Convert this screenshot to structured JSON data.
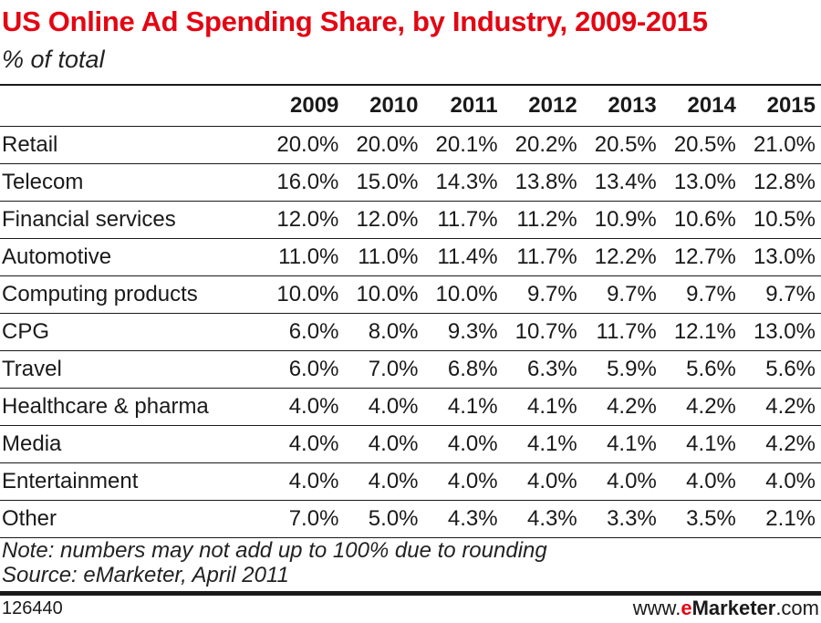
{
  "chart_data": {
    "type": "table",
    "title": "US Online Ad Spending Share, by Industry, 2009-2015",
    "subtitle": "% of total",
    "columns": [
      "2009",
      "2010",
      "2011",
      "2012",
      "2013",
      "2014",
      "2015"
    ],
    "rows": [
      {
        "label": "Retail",
        "values": [
          "20.0%",
          "20.0%",
          "20.1%",
          "20.2%",
          "20.5%",
          "20.5%",
          "21.0%"
        ]
      },
      {
        "label": "Telecom",
        "values": [
          "16.0%",
          "15.0%",
          "14.3%",
          "13.8%",
          "13.4%",
          "13.0%",
          "12.8%"
        ]
      },
      {
        "label": "Financial services",
        "values": [
          "12.0%",
          "12.0%",
          "11.7%",
          "11.2%",
          "10.9%",
          "10.6%",
          "10.5%"
        ]
      },
      {
        "label": "Automotive",
        "values": [
          "11.0%",
          "11.0%",
          "11.4%",
          "11.7%",
          "12.2%",
          "12.7%",
          "13.0%"
        ]
      },
      {
        "label": "Computing products",
        "values": [
          "10.0%",
          "10.0%",
          "10.0%",
          "9.7%",
          "9.7%",
          "9.7%",
          "9.7%"
        ]
      },
      {
        "label": "CPG",
        "values": [
          "6.0%",
          "8.0%",
          "9.3%",
          "10.7%",
          "11.7%",
          "12.1%",
          "13.0%"
        ]
      },
      {
        "label": "Travel",
        "values": [
          "6.0%",
          "7.0%",
          "6.8%",
          "6.3%",
          "5.9%",
          "5.6%",
          "5.6%"
        ]
      },
      {
        "label": "Healthcare & pharma",
        "values": [
          "4.0%",
          "4.0%",
          "4.1%",
          "4.1%",
          "4.2%",
          "4.2%",
          "4.2%"
        ]
      },
      {
        "label": "Media",
        "values": [
          "4.0%",
          "4.0%",
          "4.0%",
          "4.1%",
          "4.1%",
          "4.1%",
          "4.2%"
        ]
      },
      {
        "label": "Entertainment",
        "values": [
          "4.0%",
          "4.0%",
          "4.0%",
          "4.0%",
          "4.0%",
          "4.0%",
          "4.0%"
        ]
      },
      {
        "label": "Other",
        "values": [
          "7.0%",
          "5.0%",
          "4.3%",
          "4.3%",
          "3.3%",
          "3.5%",
          "2.1%"
        ]
      }
    ]
  },
  "notes": {
    "note": "Note: numbers may not add up to 100% due to rounding",
    "source": "Source: eMarketer, April 2011"
  },
  "footer": {
    "chart_id": "126440",
    "brand_prefix": "www.",
    "brand_e": "e",
    "brand_name": "Marketer",
    "brand_suffix": ".com"
  },
  "colors": {
    "title": "#e30613",
    "text": "#1a1a1a"
  }
}
